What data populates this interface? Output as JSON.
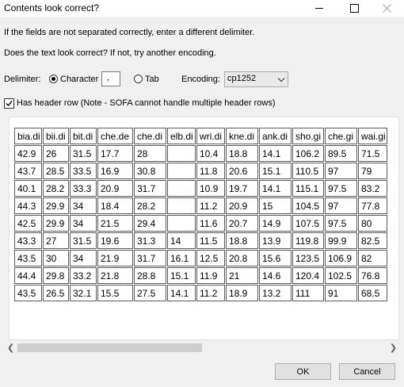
{
  "window": {
    "title": "Contents look correct?",
    "minimize_icon": "minimize-icon",
    "maximize_icon": "maximize-icon",
    "close_icon": "close-icon"
  },
  "instructions": {
    "delimiter_hint": "If the fields are not separated correctly, enter a different delimiter.",
    "encoding_hint": "Does the text look correct? If not, try another encoding."
  },
  "options": {
    "delimiter_label": "Delimiter:",
    "character_label": "Character",
    "character_value": ",",
    "character_selected": true,
    "tab_label": "Tab",
    "tab_selected": false,
    "encoding_label": "Encoding:",
    "encoding_value": "cp1252",
    "has_header_checked": true,
    "has_header_label": "Has header row (Note - SOFA cannot handle multiple header rows)"
  },
  "grid": {
    "columns": [
      "bia.di",
      "bii.di",
      "bit.di",
      "che.de",
      "che.di",
      "elb.di",
      "wri.di",
      "kne.di",
      "ank.di",
      "sho.gi",
      "che.gi",
      "wai.gi"
    ],
    "rows": [
      [
        "42.9",
        "26",
        "31.5",
        "17.7",
        "28",
        "",
        "10.4",
        "18.8",
        "14.1",
        "106.2",
        "89.5",
        "71.5"
      ],
      [
        "43.7",
        "28.5",
        "33.5",
        "16.9",
        "30.8",
        "",
        "11.8",
        "20.6",
        "15.1",
        "110.5",
        "97",
        "79"
      ],
      [
        "40.1",
        "28.2",
        "33.3",
        "20.9",
        "31.7",
        "",
        "10.9",
        "19.7",
        "14.1",
        "115.1",
        "97.5",
        "83.2"
      ],
      [
        "44.3",
        "29.9",
        "34",
        "18.4",
        "28.2",
        "",
        "11.2",
        "20.9",
        "15",
        "104.5",
        "97",
        "77.8"
      ],
      [
        "42.5",
        "29.9",
        "34",
        "21.5",
        "29.4",
        "",
        "11.6",
        "20.7",
        "14.9",
        "107.5",
        "97.5",
        "80"
      ],
      [
        "43.3",
        "27",
        "31.5",
        "19.6",
        "31.3",
        "14",
        "11.5",
        "18.8",
        "13.9",
        "119.8",
        "99.9",
        "82.5"
      ],
      [
        "43.5",
        "30",
        "34",
        "21.9",
        "31.7",
        "16.1",
        "12.5",
        "20.8",
        "15.6",
        "123.5",
        "106.9",
        "82"
      ],
      [
        "44.4",
        "29.8",
        "33.2",
        "21.8",
        "28.8",
        "15.1",
        "11.9",
        "21",
        "14.6",
        "120.4",
        "102.5",
        "76.8"
      ],
      [
        "43.5",
        "26.5",
        "32.1",
        "15.5",
        "27.5",
        "14.1",
        "11.2",
        "18.9",
        "13.2",
        "111",
        "91",
        "68.5"
      ]
    ]
  },
  "scrollbar": {
    "left_icon": "chevron-left-icon",
    "right_icon": "chevron-right-icon",
    "thumb_fraction": 0.5
  },
  "buttons": {
    "ok_label": "OK",
    "cancel_label": "Cancel"
  }
}
